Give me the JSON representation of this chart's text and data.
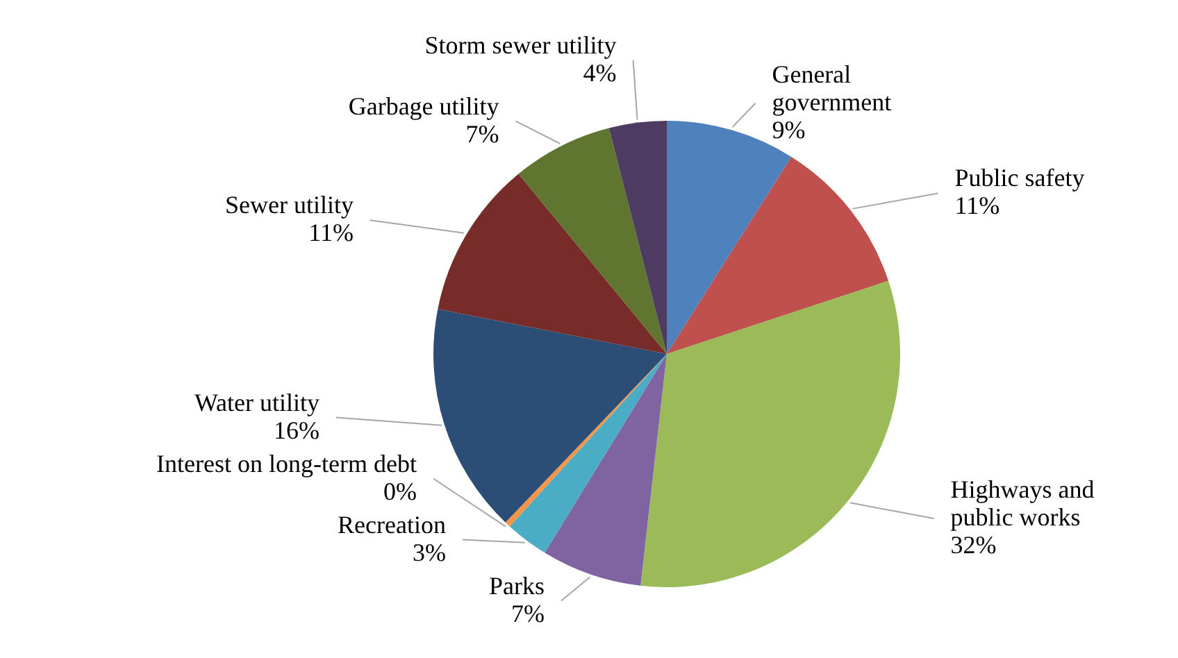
{
  "chart_data": {
    "type": "pie",
    "categories": [
      "General government",
      "Public safety",
      "Highways and public works",
      "Parks",
      "Recreation",
      "Interest on long-term debt",
      "Water utility",
      "Sewer utility",
      "Garbage utility",
      "Storm sewer utility"
    ],
    "values": [
      9,
      11,
      32,
      7,
      3,
      0.4,
      16,
      11,
      7,
      4
    ],
    "value_labels": [
      "9%",
      "11%",
      "32%",
      "7%",
      "3%",
      "0%",
      "16%",
      "11%",
      "7%",
      "4%"
    ],
    "colors": [
      "#4f81bd",
      "#c0504d",
      "#9bbb59",
      "#8064a2",
      "#4bacc6",
      "#f79646",
      "#2c4d75",
      "#772c2a",
      "#5f7530",
      "#4d3b62"
    ]
  }
}
